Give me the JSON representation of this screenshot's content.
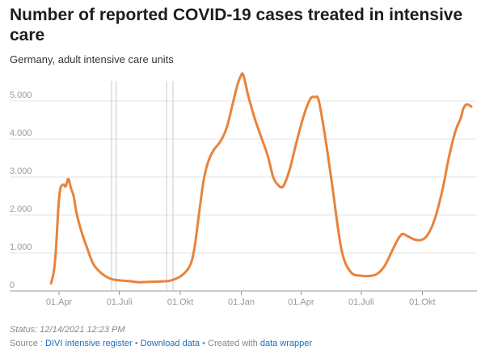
{
  "chart_data": {
    "type": "line",
    "title": "Number of reported COVID-19 cases treated in intensive care",
    "subtitle": "Germany, adult intensive care units",
    "x_ticks": [
      "01.Apr",
      "01.Juli",
      "01.Okt",
      "01.Jan",
      "01.Apr",
      "01.Juli",
      "01.Okt"
    ],
    "x_tick_dates": [
      "2020-04-01",
      "2020-07-01",
      "2020-10-01",
      "2021-01-01",
      "2021-04-01",
      "2021-07-01",
      "2021-10-01"
    ],
    "y_ticks": [
      "0",
      "1.000",
      "2.000",
      "3.000",
      "4.000",
      "5.000"
    ],
    "y_tick_values": [
      0,
      1000,
      2000,
      3000,
      4000,
      5000
    ],
    "ylim": [
      0,
      5700
    ],
    "xlim": [
      "2020-03-10",
      "2021-12-14"
    ],
    "grid": "horizontal",
    "color": "#e8833a",
    "annotation_dates": [
      "2020-06-19",
      "2020-06-26",
      "2020-09-10",
      "2020-09-20"
    ],
    "series": [
      {
        "x": [
          "2020-03-20",
          "2020-03-24",
          "2020-03-27",
          "2020-03-31",
          "2020-04-03",
          "2020-04-08",
          "2020-04-11",
          "2020-04-15",
          "2020-04-19",
          "2020-04-23",
          "2020-04-28",
          "2020-05-06",
          "2020-05-14",
          "2020-05-23",
          "2020-06-05",
          "2020-06-18",
          "2020-07-01",
          "2020-07-15",
          "2020-07-30",
          "2020-08-15",
          "2020-09-01",
          "2020-09-15",
          "2020-10-01",
          "2020-10-15",
          "2020-10-22",
          "2020-10-29",
          "2020-11-05",
          "2020-11-12",
          "2020-11-20",
          "2020-12-01",
          "2020-12-10",
          "2020-12-18",
          "2020-12-25",
          "2020-12-31",
          "2021-01-04",
          "2021-01-12",
          "2021-01-22",
          "2021-02-01",
          "2021-02-10",
          "2021-02-18",
          "2021-02-25",
          "2021-03-05",
          "2021-03-15",
          "2021-03-25",
          "2021-04-05",
          "2021-04-15",
          "2021-04-22",
          "2021-04-28",
          "2021-05-08",
          "2021-05-18",
          "2021-06-01",
          "2021-06-15",
          "2021-07-01",
          "2021-07-15",
          "2021-07-25",
          "2021-08-05",
          "2021-08-15",
          "2021-08-25",
          "2021-09-01",
          "2021-09-08",
          "2021-09-20",
          "2021-10-01",
          "2021-10-10",
          "2021-10-20",
          "2021-11-01",
          "2021-11-10",
          "2021-11-20",
          "2021-11-28",
          "2021-12-02",
          "2021-12-06",
          "2021-12-10",
          "2021-12-14"
        ],
        "y": [
          200,
          500,
          1000,
          2200,
          2700,
          2800,
          2750,
          2950,
          2700,
          2500,
          2000,
          1500,
          1100,
          700,
          450,
          320,
          280,
          260,
          230,
          240,
          250,
          270,
          380,
          650,
          1100,
          2000,
          2900,
          3400,
          3700,
          3950,
          4300,
          4850,
          5350,
          5650,
          5680,
          5100,
          4500,
          4000,
          3550,
          3000,
          2800,
          2750,
          3200,
          3900,
          4600,
          5050,
          5100,
          5000,
          4000,
          2800,
          1100,
          500,
          400,
          400,
          450,
          650,
          1000,
          1350,
          1500,
          1450,
          1350,
          1350,
          1500,
          1900,
          2700,
          3500,
          4200,
          4550,
          4800,
          4900,
          4900,
          4850
        ]
      }
    ]
  },
  "footer": {
    "status": "Status: 12/14/2021 12:23 PM",
    "source_prefix": "Source :",
    "source_link": "DIVI intensive register",
    "sep1": "•",
    "download": "Download data",
    "sep2": "•",
    "created": "Created with",
    "credit": "data wrapper"
  }
}
